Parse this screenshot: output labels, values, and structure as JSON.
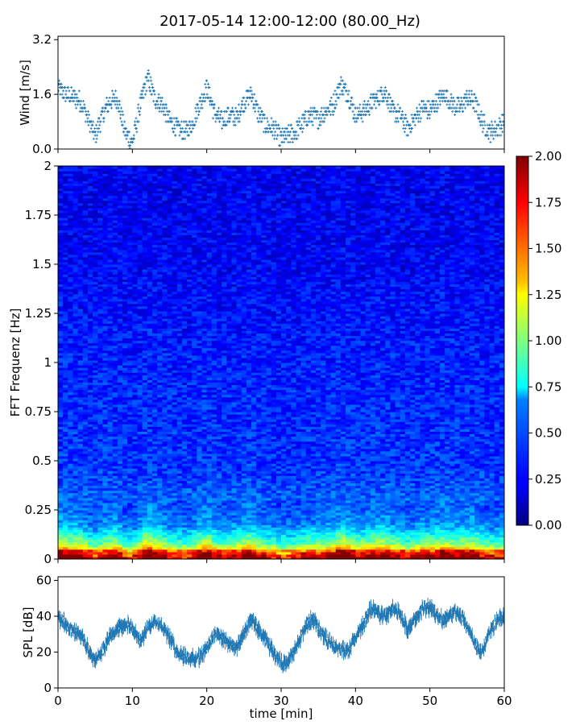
{
  "figure_title": "2017-05-14 12:00-12:00 (80.00_Hz)",
  "chart_data": [
    {
      "type": "scatter",
      "panel": "wind",
      "title": "",
      "xlabel": "",
      "ylabel": "Wind [m/s]",
      "xlim": [
        0,
        60
      ],
      "ylim": [
        0,
        3.3
      ],
      "y_ticks": [
        "0.0",
        "1.6",
        "3.2"
      ],
      "y_tick_values": [
        0.0,
        1.6,
        3.2
      ],
      "x_tick_values": [
        0,
        10,
        20,
        30,
        40,
        50,
        60
      ],
      "marker": "+",
      "color": "#1f77b4",
      "series": [
        {
          "x": [
            0,
            1,
            2,
            3,
            4,
            5,
            6,
            7,
            8,
            9,
            10,
            11,
            12,
            13,
            14,
            15,
            16,
            17,
            18,
            19,
            20,
            21,
            22,
            23,
            24,
            25,
            26,
            27,
            28,
            29,
            30,
            31,
            32,
            33,
            34,
            35,
            36,
            37,
            38,
            39,
            40,
            41,
            42,
            43,
            44,
            45,
            46,
            47,
            48,
            49,
            50,
            51,
            52,
            53,
            54,
            55,
            56,
            57,
            58,
            59,
            60
          ],
          "y": [
            1.8,
            1.6,
            1.5,
            1.4,
            0.9,
            0.4,
            1.0,
            1.4,
            1.5,
            0.5,
            0.2,
            1.2,
            2.1,
            1.5,
            1.3,
            0.8,
            0.6,
            0.5,
            0.7,
            1.3,
            1.8,
            1.1,
            0.8,
            1.0,
            0.9,
            1.4,
            1.6,
            1.0,
            0.7,
            0.6,
            0.3,
            0.4,
            0.5,
            0.8,
            1.0,
            0.9,
            1.1,
            1.3,
            1.9,
            1.6,
            1.0,
            1.1,
            1.3,
            1.5,
            1.7,
            1.1,
            1.0,
            0.6,
            0.9,
            1.2,
            1.1,
            1.4,
            1.6,
            1.3,
            1.2,
            1.5,
            1.4,
            0.8,
            0.5,
            0.6,
            0.8
          ]
        }
      ]
    },
    {
      "type": "heatmap",
      "panel": "spectrogram",
      "title": "",
      "xlabel": "",
      "ylabel": "FFT Frequenz [Hz]",
      "xlim": [
        0,
        60
      ],
      "ylim": [
        0,
        2
      ],
      "y_ticks": [
        "0",
        "0.25",
        "0.5",
        "0.75",
        "1",
        "1.25",
        "1.5",
        "1.75",
        "2"
      ],
      "y_tick_values": [
        0,
        0.25,
        0.5,
        0.75,
        1,
        1.25,
        1.5,
        1.75,
        2
      ],
      "colormap": "jet",
      "colorbar": {
        "range": [
          0,
          2
        ],
        "ticks": [
          "0.00",
          "0.25",
          "0.50",
          "0.75",
          "1.00",
          "1.25",
          "1.50",
          "1.75",
          "2.00"
        ],
        "tick_values": [
          0,
          0.25,
          0.5,
          0.75,
          1,
          1.25,
          1.5,
          1.75,
          2
        ]
      },
      "frequency_profile": {
        "freq": [
          0.0,
          0.04,
          0.08,
          0.12,
          0.16,
          0.2,
          0.25,
          0.3,
          0.4,
          0.5,
          0.75,
          1.0,
          1.5,
          2.0
        ],
        "typical_value": [
          1.9,
          1.5,
          1.0,
          0.8,
          0.6,
          0.5,
          0.45,
          0.42,
          0.35,
          0.32,
          0.3,
          0.28,
          0.22,
          0.2
        ]
      }
    },
    {
      "type": "line",
      "panel": "spl",
      "title": "",
      "xlabel": "time [min]",
      "ylabel": "SPL [dB]",
      "xlim": [
        0,
        60
      ],
      "ylim": [
        0,
        62
      ],
      "y_ticks": [
        "0",
        "20",
        "40",
        "60"
      ],
      "y_tick_values": [
        0,
        20,
        40,
        60
      ],
      "x_ticks": [
        "0",
        "10",
        "20",
        "30",
        "40",
        "50",
        "60"
      ],
      "x_tick_values": [
        0,
        10,
        20,
        30,
        40,
        50,
        60
      ],
      "color": "#1f77b4",
      "series": [
        {
          "x": [
            0,
            1,
            2,
            3,
            4,
            5,
            6,
            7,
            8,
            9,
            10,
            11,
            12,
            13,
            14,
            15,
            16,
            17,
            18,
            19,
            20,
            21,
            22,
            23,
            24,
            25,
            26,
            27,
            28,
            29,
            30,
            31,
            32,
            33,
            34,
            35,
            36,
            37,
            38,
            39,
            40,
            41,
            42,
            43,
            44,
            45,
            46,
            47,
            48,
            49,
            50,
            51,
            52,
            53,
            54,
            55,
            56,
            57,
            58,
            59,
            60
          ],
          "y": [
            40,
            36,
            32,
            30,
            22,
            15,
            20,
            30,
            33,
            35,
            34,
            25,
            33,
            38,
            34,
            28,
            20,
            18,
            16,
            17,
            22,
            30,
            28,
            24,
            22,
            30,
            38,
            32,
            26,
            20,
            14,
            15,
            22,
            32,
            38,
            34,
            28,
            24,
            22,
            20,
            28,
            35,
            44,
            42,
            40,
            44,
            42,
            32,
            38,
            44,
            45,
            40,
            38,
            42,
            40,
            35,
            25,
            20,
            30,
            38,
            40
          ]
        }
      ]
    }
  ]
}
